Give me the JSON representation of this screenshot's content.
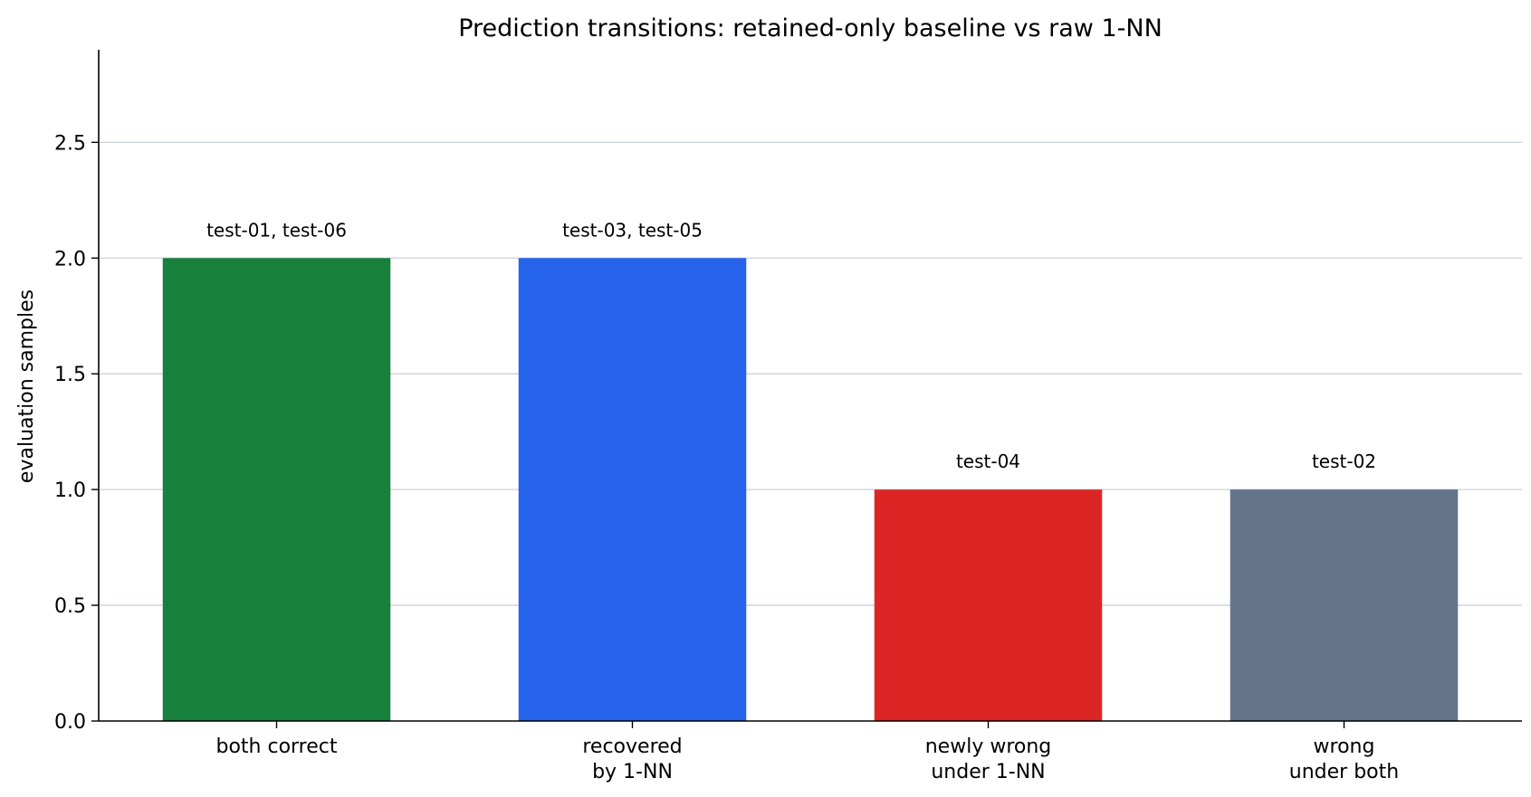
{
  "chart_data": {
    "type": "bar",
    "title": "Prediction transitions: retained-only baseline vs raw 1-NN",
    "xlabel": "",
    "ylabel": "evaluation samples",
    "ylim": [
      0,
      2.9
    ],
    "yticks": [
      "0.0",
      "0.5",
      "1.0",
      "1.5",
      "2.0",
      "2.5"
    ],
    "ytick_values": [
      0,
      0.5,
      1.0,
      1.5,
      2.0,
      2.5
    ],
    "grid": "y",
    "categories": [
      [
        "both correct"
      ],
      [
        "recovered",
        "by 1-NN"
      ],
      [
        "newly wrong",
        "under 1-NN"
      ],
      [
        "wrong",
        "under both"
      ]
    ],
    "values": [
      2,
      2,
      1,
      1
    ],
    "bar_labels": [
      "test-01, test-06",
      "test-03, test-05",
      "test-04",
      "test-02"
    ],
    "colors": [
      "#17803d",
      "#2563eb",
      "#dc2626",
      "#64748b"
    ]
  }
}
